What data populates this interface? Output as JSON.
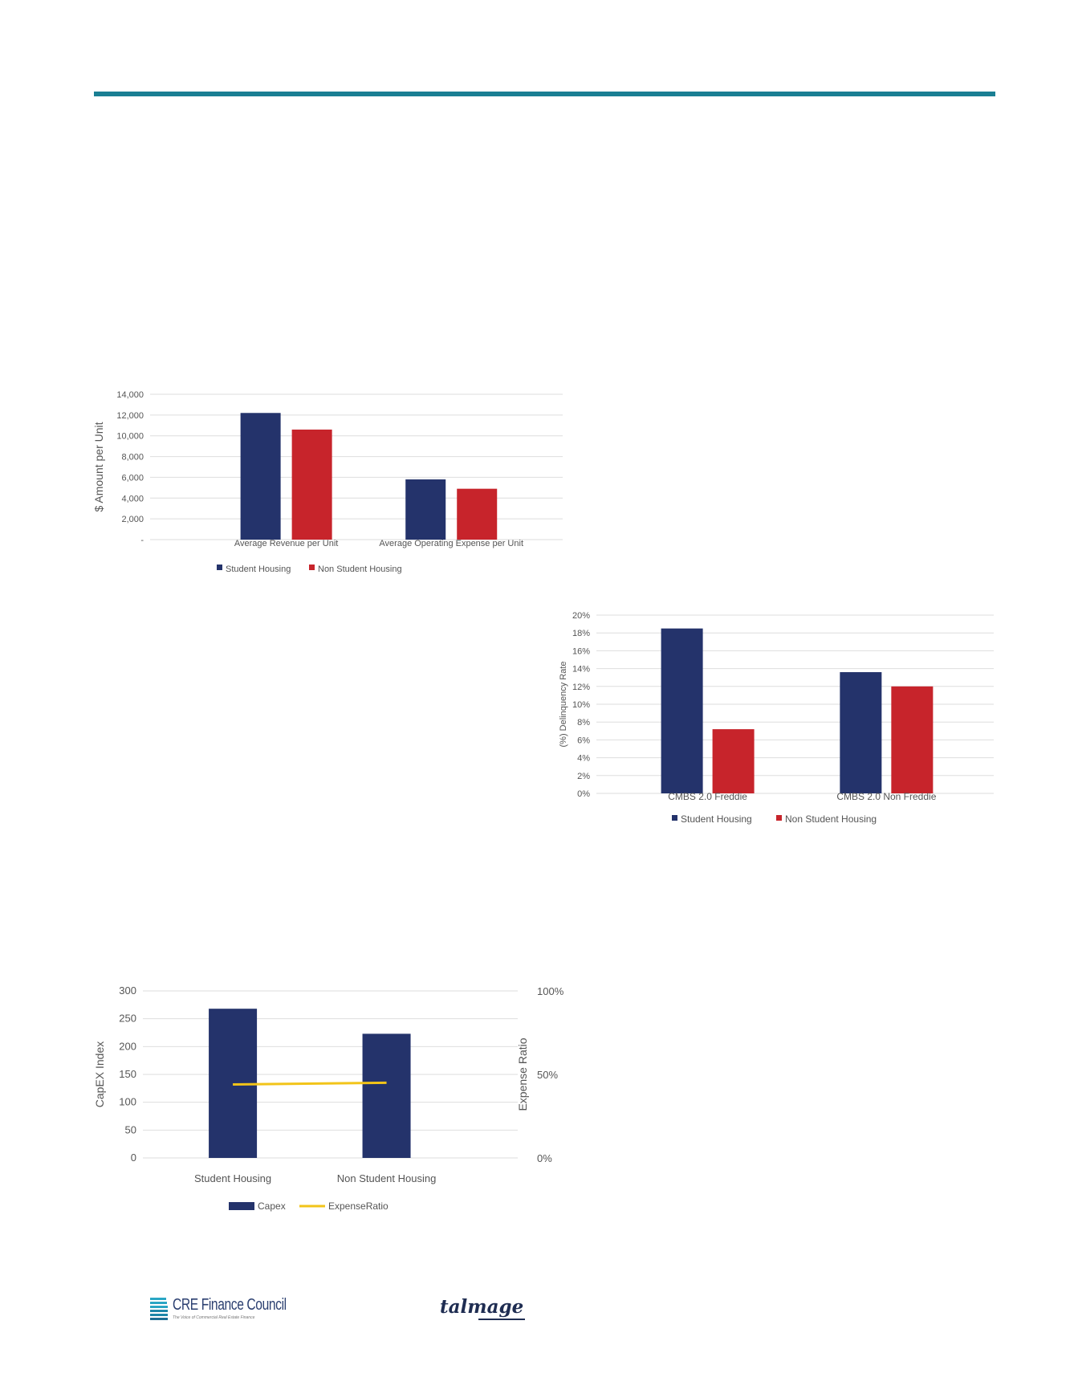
{
  "colors": {
    "rule": "#1a7f93",
    "student": "#24336b",
    "non_student": "#c7242b",
    "expense_ratio_line": "#f2c419",
    "grid": "#dedede"
  },
  "footer": {
    "logo1_name": "CRE Finance Council",
    "logo1_tagline": "The Voice of Commercial Real Estate Finance",
    "logo2_name": "talmage"
  },
  "chart_data": [
    {
      "id": "chart1",
      "type": "bar",
      "title": "",
      "ylabel": "$ Amount per Unit",
      "xlabel": "",
      "categories": [
        "Average Revenue per Unit",
        "Average Operating Expense per Unit"
      ],
      "series": [
        {
          "name": "Student Housing",
          "color": "#24336b",
          "values": [
            12200,
            5800
          ]
        },
        {
          "name": "Non Student Housing",
          "color": "#c7242b",
          "values": [
            10600,
            4900
          ]
        }
      ],
      "ylim": [
        0,
        14000
      ],
      "yticks": [
        0,
        2000,
        4000,
        6000,
        8000,
        10000,
        12000,
        14000
      ],
      "ytick_labels": [
        "-",
        "2,000",
        "4,000",
        "6,000",
        "8,000",
        "10,000",
        "12,000",
        "14,000"
      ],
      "grid": true,
      "legend": "bottom"
    },
    {
      "id": "chart2",
      "type": "bar",
      "title": "",
      "ylabel": "(%) Delinquency Rate",
      "xlabel": "",
      "categories": [
        "CMBS 2.0 Freddie",
        "CMBS 2.0 Non Freddie"
      ],
      "series": [
        {
          "name": "Student Housing",
          "color": "#24336b",
          "values": [
            18.5,
            13.6
          ]
        },
        {
          "name": "Non Student Housing",
          "color": "#c7242b",
          "values": [
            7.2,
            12.0
          ]
        }
      ],
      "ylim": [
        0,
        20
      ],
      "yticks": [
        0,
        2,
        4,
        6,
        8,
        10,
        12,
        14,
        16,
        18,
        20
      ],
      "ytick_labels": [
        "0%",
        "2%",
        "4%",
        "6%",
        "8%",
        "10%",
        "12%",
        "14%",
        "16%",
        "18%",
        "20%"
      ],
      "grid": true,
      "legend": "bottom"
    },
    {
      "id": "chart3",
      "type": "bar",
      "title": "",
      "ylabel": "CapEX Index",
      "y2label": "Expense Ratio",
      "xlabel": "",
      "categories": [
        "Student Housing",
        "Non Student Housing"
      ],
      "series": [
        {
          "name": "Capex",
          "color": "#24336b",
          "kind": "bar",
          "axis": "left",
          "values": [
            268,
            223
          ]
        },
        {
          "name": "ExpenseRatio",
          "color": "#f2c419",
          "kind": "line",
          "axis": "right",
          "values": [
            0.44,
            0.45
          ]
        }
      ],
      "ylim": [
        0,
        300
      ],
      "yticks": [
        0,
        50,
        100,
        150,
        200,
        250,
        300
      ],
      "ytick_labels": [
        "0",
        "50",
        "100",
        "150",
        "200",
        "250",
        "300"
      ],
      "y2lim": [
        0,
        1
      ],
      "y2ticks": [
        0,
        0.5,
        1
      ],
      "y2tick_labels": [
        "0%",
        "50%",
        "100%"
      ],
      "grid": true,
      "legend": "bottom"
    }
  ]
}
